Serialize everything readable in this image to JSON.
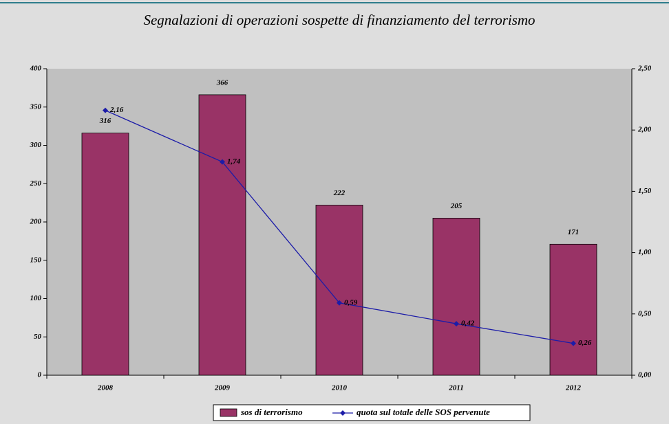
{
  "chart_data": {
    "type": "bar",
    "title": "Segnalazioni di operazioni sospette di finanziamento del terrorismo",
    "categories": [
      "2008",
      "2009",
      "2010",
      "2011",
      "2012"
    ],
    "series": [
      {
        "name": "sos di terrorismo",
        "color": "#993366",
        "values": [
          316,
          366,
          222,
          205,
          171
        ]
      },
      {
        "name": "quota sul totale delle SOS pervenute",
        "color": "#1c1ca8",
        "type": "line",
        "axis": "y2",
        "values": [
          2.16,
          1.74,
          0.59,
          0.42,
          0.26
        ],
        "value_labels": [
          "2,16",
          "1,74",
          "0,59",
          "0,42",
          "0,26"
        ]
      }
    ],
    "ylim": [
      0,
      400
    ],
    "yticks": [
      0,
      50,
      100,
      150,
      200,
      250,
      300,
      350,
      400
    ],
    "y2lim": [
      0,
      2.5
    ],
    "y2ticks": [
      {
        "value": 0,
        "label": "0,00"
      },
      {
        "value": 0.5,
        "label": "0,50"
      },
      {
        "value": 1,
        "label": "1,00"
      },
      {
        "value": 1.5,
        "label": "1,50"
      },
      {
        "value": 2,
        "label": "2,00"
      },
      {
        "value": 2.5,
        "label": "2,50"
      }
    ],
    "legend": "bottom"
  }
}
